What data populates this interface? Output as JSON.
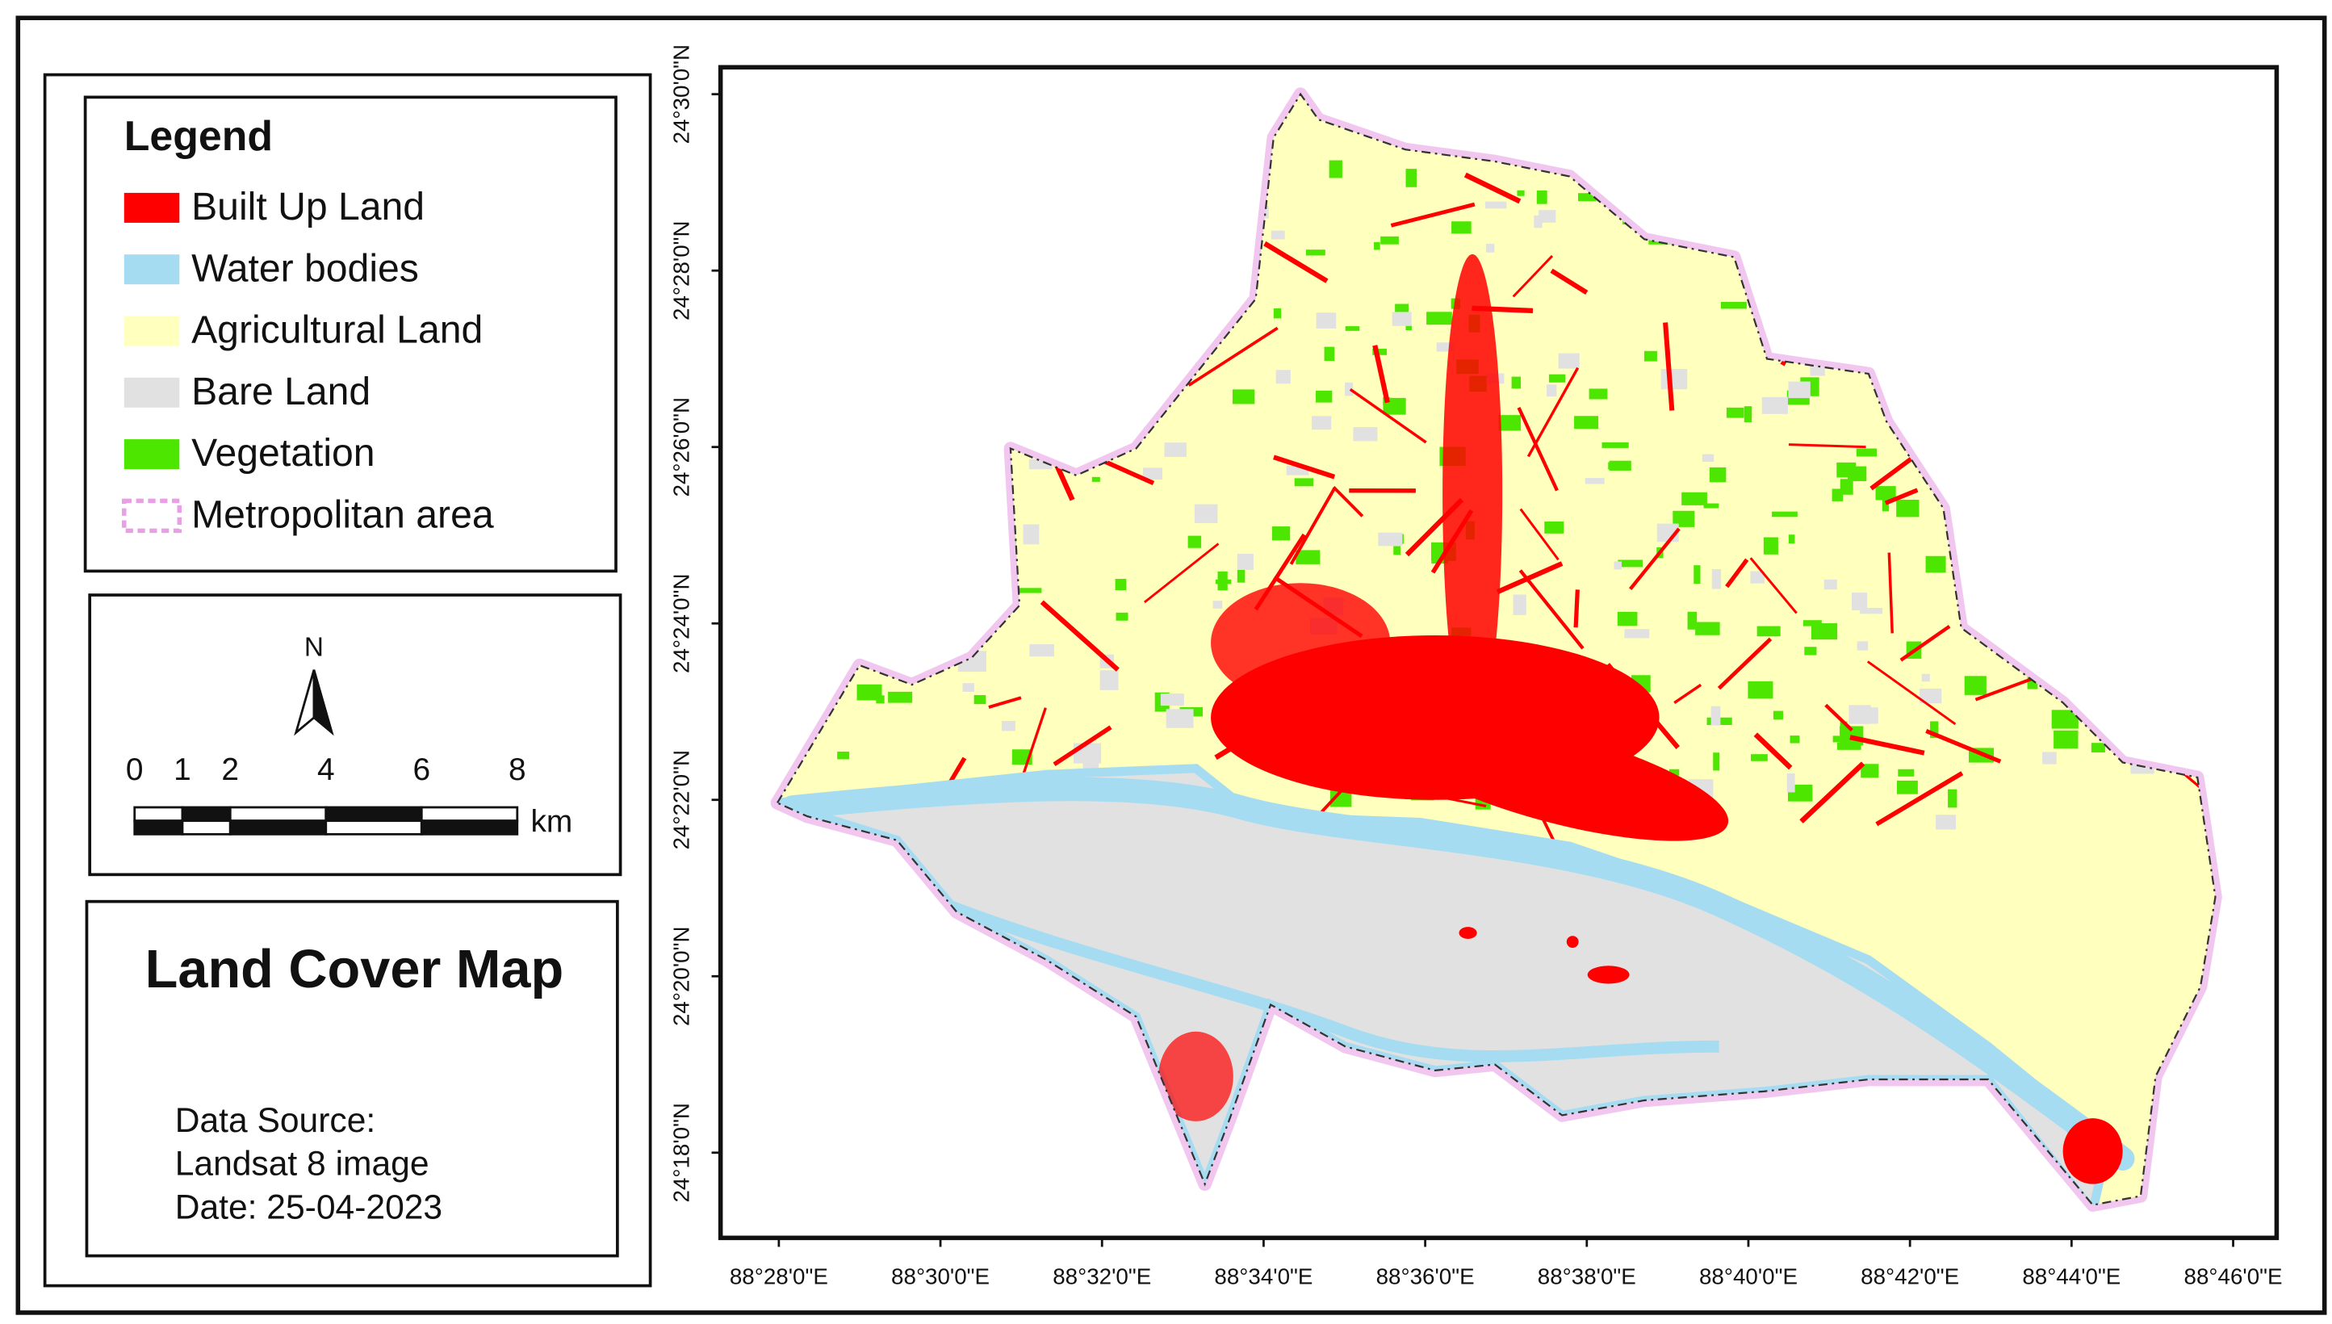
{
  "legend": {
    "title": "Legend",
    "items": [
      {
        "label": "Built Up Land",
        "color": "#ff0000"
      },
      {
        "label": "Water bodies",
        "color": "#a6dcf2"
      },
      {
        "label": "Agricultural Land",
        "color": "#ffffbe"
      },
      {
        "label": "Bare Land",
        "color": "#e1e1e1"
      },
      {
        "label": "Vegetation",
        "color": "#4ce600"
      },
      {
        "label": "Metropolitan area",
        "color": "#e8a0e4"
      }
    ]
  },
  "north": "N",
  "scale_bar": {
    "ticks": [
      0,
      1,
      2,
      4,
      6,
      8
    ],
    "unit": "km"
  },
  "title": "Land Cover Map",
  "data_source": [
    "Data Source:",
    "Landsat 8 image",
    "Date: 25-04-2023"
  ],
  "latitude_labels": [
    "24°30'0\"N",
    "24°28'0\"N",
    "24°26'0\"N",
    "24°24'0\"N",
    "24°22'0\"N",
    "24°20'0\"N",
    "24°18'0\"N"
  ],
  "longitude_labels": [
    "88°28'0\"E",
    "88°30'0\"E",
    "88°32'0\"E",
    "88°34'0\"E",
    "88°36'0\"E",
    "88°38'0\"E",
    "88°40'0\"E",
    "88°42'0\"E",
    "88°44'0\"E",
    "88°46'0\"E"
  ]
}
